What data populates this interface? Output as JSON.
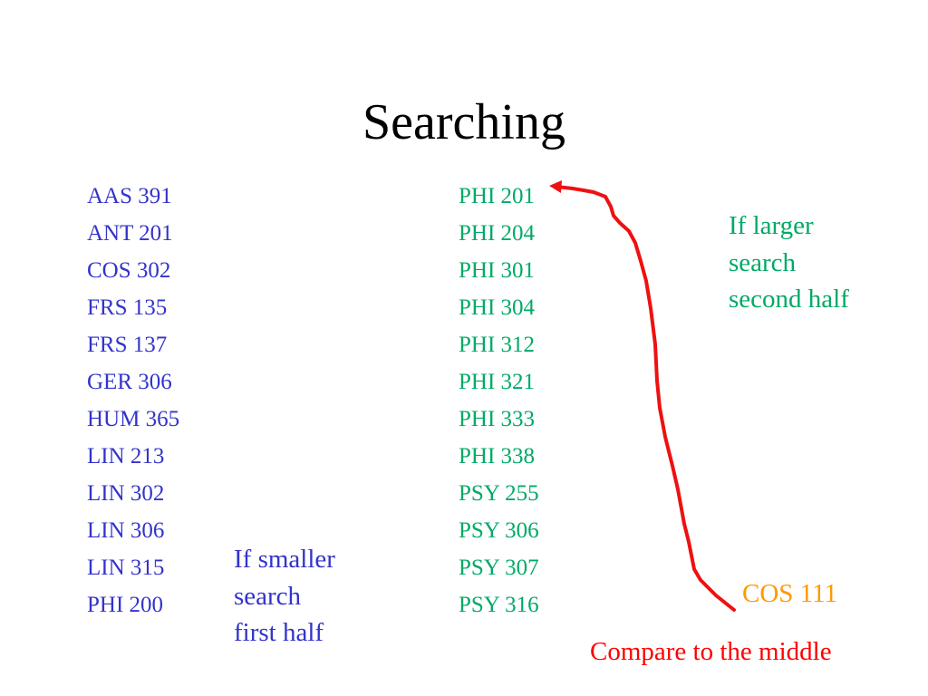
{
  "title": "Searching",
  "left_column": [
    "AAS 391",
    "ANT 201",
    "COS 302",
    "FRS 135",
    "FRS 137",
    "GER 306",
    "HUM 365",
    "LIN 213",
    "LIN 302",
    "LIN 306",
    "LIN 315",
    "PHI 200"
  ],
  "right_column": [
    "PHI 201",
    "PHI 204",
    "PHI 301",
    "PHI 304",
    "PHI 312",
    "PHI 321",
    "PHI 333",
    "PHI 338",
    "PSY 255",
    "PSY 306",
    "PSY 307",
    "PSY 316"
  ],
  "note_smaller": [
    "If smaller",
    "search",
    "first half"
  ],
  "note_larger": [
    "If larger",
    "search",
    "second half"
  ],
  "target": "COS 111",
  "compare": "Compare to the middle",
  "colors": {
    "left": "#3333cc",
    "right": "#00aa66",
    "target": "#ff9900",
    "compare": "#ff0000",
    "arrow": "#ee1111"
  }
}
